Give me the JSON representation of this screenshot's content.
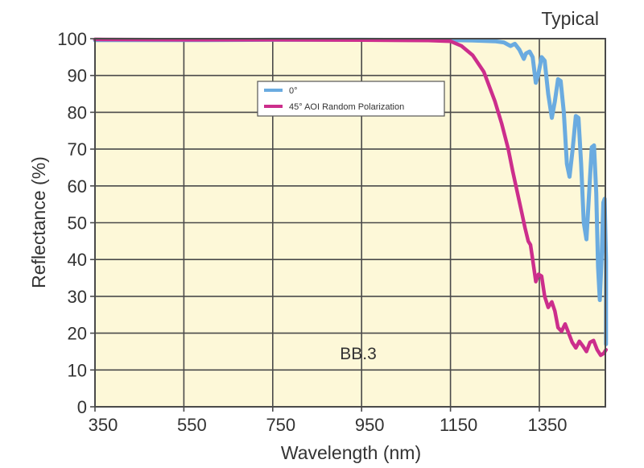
{
  "corner_label": "Typical",
  "annotation": "BB.3",
  "chart_data": {
    "type": "line",
    "title": "",
    "xlabel": "Wavelength (nm)",
    "ylabel": "Reflectance (%)",
    "xlim": [
      350,
      1500
    ],
    "ylim": [
      0,
      100
    ],
    "x_ticks": [
      350,
      550,
      750,
      950,
      1150,
      1350
    ],
    "y_ticks": [
      0,
      10,
      20,
      30,
      40,
      50,
      60,
      70,
      80,
      90,
      100
    ],
    "grid": true,
    "background": "#fdf8d8",
    "legend_position": "upper-center",
    "annotations": [
      {
        "text": "BB.3",
        "x": 950,
        "y": 14
      },
      {
        "text": "Typical",
        "position": "top-right"
      }
    ],
    "series": [
      {
        "name": "0°",
        "color": "#6aabe0",
        "points": [
          [
            350,
            99.6
          ],
          [
            550,
            99.6
          ],
          [
            750,
            99.7
          ],
          [
            950,
            99.7
          ],
          [
            1150,
            99.6
          ],
          [
            1200,
            99.5
          ],
          [
            1250,
            99.3
          ],
          [
            1270,
            99.0
          ],
          [
            1285,
            98.0
          ],
          [
            1295,
            98.6
          ],
          [
            1305,
            97.0
          ],
          [
            1315,
            94.5
          ],
          [
            1320,
            96.0
          ],
          [
            1328,
            96.5
          ],
          [
            1335,
            95.0
          ],
          [
            1342,
            88.0
          ],
          [
            1348,
            90.5
          ],
          [
            1355,
            95.0
          ],
          [
            1362,
            94.0
          ],
          [
            1370,
            85.0
          ],
          [
            1378,
            78.5
          ],
          [
            1385,
            83.0
          ],
          [
            1392,
            89.0
          ],
          [
            1398,
            88.5
          ],
          [
            1405,
            80.0
          ],
          [
            1412,
            66.0
          ],
          [
            1418,
            62.5
          ],
          [
            1425,
            70.0
          ],
          [
            1432,
            79.0
          ],
          [
            1438,
            78.5
          ],
          [
            1444,
            66.0
          ],
          [
            1450,
            50.0
          ],
          [
            1456,
            45.5
          ],
          [
            1462,
            58.0
          ],
          [
            1468,
            70.5
          ],
          [
            1473,
            71.0
          ],
          [
            1478,
            58.0
          ],
          [
            1482,
            38.0
          ],
          [
            1486,
            29.0
          ],
          [
            1490,
            40.0
          ],
          [
            1494,
            55.5
          ],
          [
            1497,
            56.5
          ],
          [
            1500,
            40.0
          ],
          [
            1502,
            17.0
          ]
        ]
      },
      {
        "name": "45° AOI Random Polarization",
        "color": "#cc2e8c",
        "points": [
          [
            350,
            99.8
          ],
          [
            550,
            99.7
          ],
          [
            750,
            99.7
          ],
          [
            950,
            99.6
          ],
          [
            1100,
            99.5
          ],
          [
            1150,
            99.3
          ],
          [
            1175,
            98.0
          ],
          [
            1200,
            95.5
          ],
          [
            1225,
            91.0
          ],
          [
            1250,
            83.0
          ],
          [
            1265,
            77.0
          ],
          [
            1280,
            70.0
          ],
          [
            1290,
            64.0
          ],
          [
            1300,
            58.5
          ],
          [
            1310,
            53.0
          ],
          [
            1318,
            48.5
          ],
          [
            1325,
            45.0
          ],
          [
            1330,
            44.0
          ],
          [
            1335,
            40.0
          ],
          [
            1342,
            34.0
          ],
          [
            1348,
            36.0
          ],
          [
            1355,
            35.5
          ],
          [
            1362,
            30.0
          ],
          [
            1370,
            27.0
          ],
          [
            1378,
            28.5
          ],
          [
            1385,
            26.0
          ],
          [
            1392,
            21.5
          ],
          [
            1400,
            20.5
          ],
          [
            1408,
            22.5
          ],
          [
            1416,
            20.0
          ],
          [
            1424,
            17.5
          ],
          [
            1432,
            16.0
          ],
          [
            1440,
            17.8
          ],
          [
            1448,
            16.5
          ],
          [
            1456,
            15.0
          ],
          [
            1464,
            17.5
          ],
          [
            1472,
            18.0
          ],
          [
            1480,
            15.5
          ],
          [
            1488,
            14.0
          ],
          [
            1495,
            14.5
          ],
          [
            1500,
            15.5
          ]
        ]
      }
    ]
  }
}
